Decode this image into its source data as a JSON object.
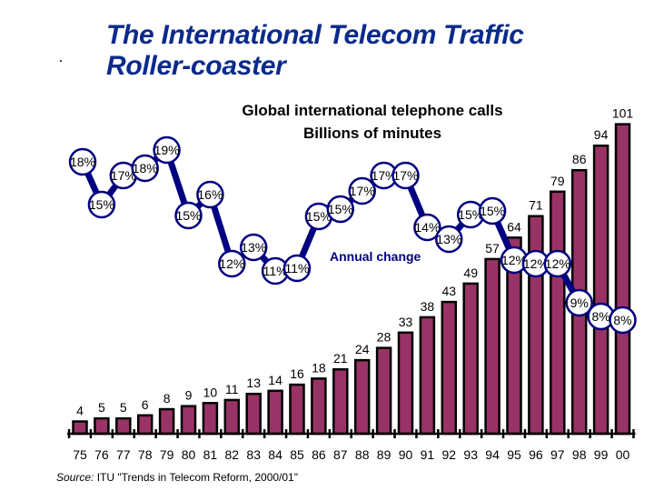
{
  "title": {
    "line1": "The International Telecom Traffic",
    "line2": "Roller-coaster"
  },
  "subtitle": {
    "line1": "Global international telephone calls",
    "line2": "Billions of minutes"
  },
  "annotation": "Annual change",
  "source": {
    "label": "Source:",
    "text": "ITU \"Trends in Telecom Reform, 2000/01\""
  },
  "colors": {
    "bar_fill": "#993366",
    "bar_stroke": "#000000",
    "line": "#000080",
    "title": "#0a2a8c"
  },
  "chart_data": {
    "type": "bar",
    "title": "Global international telephone calls",
    "subtitle": "Billions of minutes",
    "xlabel": "",
    "ylabel": "",
    "categories": [
      "75",
      "76",
      "77",
      "78",
      "79",
      "80",
      "81",
      "82",
      "83",
      "84",
      "85",
      "86",
      "87",
      "88",
      "89",
      "90",
      "91",
      "92",
      "93",
      "94",
      "95",
      "96",
      "97",
      "98",
      "99",
      "00"
    ],
    "series": [
      {
        "name": "Billions of minutes",
        "type": "bar",
        "values": [
          4,
          5,
          5,
          6,
          8,
          9,
          10,
          11,
          13,
          14,
          16,
          18,
          21,
          24,
          28,
          33,
          38,
          43,
          49,
          57,
          64,
          71,
          79,
          86,
          94,
          101
        ]
      },
      {
        "name": "Annual change",
        "type": "line",
        "values": [
          18,
          15,
          17,
          18,
          19,
          15,
          16,
          12,
          13,
          11,
          11,
          15,
          15,
          17,
          17,
          17,
          14,
          13,
          15,
          15,
          12,
          12,
          12,
          9,
          8,
          8
        ],
        "labels": [
          "18%",
          "15%",
          "17%",
          "18%",
          "19%",
          "15%",
          "16%",
          "12%",
          "13%",
          "11%",
          "11%",
          "15%",
          "15%",
          "17%",
          "17%",
          "17%",
          "14%",
          "13%",
          "15%",
          "15%",
          "12%",
          "12%",
          "12%",
          "9%",
          "8%",
          "8%"
        ],
        "unit": "%"
      }
    ],
    "ylim": [
      0,
      110
    ],
    "grid": false,
    "legend": "none"
  }
}
